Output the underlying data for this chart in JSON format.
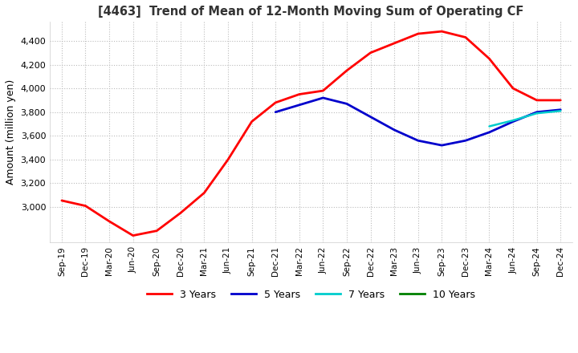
{
  "title": "[4463]  Trend of Mean of 12-Month Moving Sum of Operating CF",
  "ylabel": "Amount (million yen)",
  "background_color": "#ffffff",
  "grid_color": "#bbbbbb",
  "ylim": [
    2700,
    4560
  ],
  "yticks": [
    3000,
    3200,
    3400,
    3600,
    3800,
    4000,
    4200,
    4400
  ],
  "series": {
    "3Y": {
      "color": "#ff0000",
      "dates": [
        "Sep-19",
        "Dec-19",
        "Mar-20",
        "Jun-20",
        "Sep-20",
        "Dec-20",
        "Mar-21",
        "Jun-21",
        "Sep-21",
        "Dec-21",
        "Mar-22",
        "Jun-22",
        "Sep-22",
        "Dec-22",
        "Mar-23",
        "Jun-23",
        "Sep-23",
        "Dec-23",
        "Mar-24",
        "Jun-24",
        "Sep-24",
        "Dec-24"
      ],
      "values": [
        3055,
        3010,
        2880,
        2760,
        2800,
        2950,
        3120,
        3400,
        3720,
        3880,
        3950,
        3980,
        4150,
        4300,
        4380,
        4460,
        4480,
        4430,
        4250,
        4000,
        3900,
        3900
      ]
    },
    "5Y": {
      "color": "#0000cc",
      "dates": [
        "Dec-21",
        "Mar-22",
        "Jun-22",
        "Sep-22",
        "Dec-22",
        "Mar-23",
        "Jun-23",
        "Sep-23",
        "Dec-23",
        "Mar-24",
        "Jun-24",
        "Sep-24",
        "Dec-24"
      ],
      "values": [
        3800,
        3860,
        3920,
        3870,
        3760,
        3650,
        3560,
        3520,
        3560,
        3630,
        3720,
        3800,
        3820
      ]
    },
    "7Y": {
      "color": "#00cccc",
      "dates": [
        "Mar-24",
        "Jun-24",
        "Sep-24",
        "Dec-24"
      ],
      "values": [
        3680,
        3730,
        3790,
        3810
      ]
    },
    "10Y": {
      "color": "#008000",
      "dates": [],
      "values": []
    }
  },
  "x_tick_labels": [
    "Sep-19",
    "Dec-19",
    "Mar-20",
    "Jun-20",
    "Sep-20",
    "Dec-20",
    "Mar-21",
    "Jun-21",
    "Sep-21",
    "Dec-21",
    "Mar-22",
    "Jun-22",
    "Sep-22",
    "Dec-22",
    "Mar-23",
    "Jun-23",
    "Sep-23",
    "Dec-23",
    "Mar-24",
    "Jun-24",
    "Sep-24",
    "Dec-24"
  ],
  "legend": [
    {
      "label": "3 Years",
      "color": "#ff0000"
    },
    {
      "label": "5 Years",
      "color": "#0000cc"
    },
    {
      "label": "7 Years",
      "color": "#00cccc"
    },
    {
      "label": "10 Years",
      "color": "#008000"
    }
  ]
}
